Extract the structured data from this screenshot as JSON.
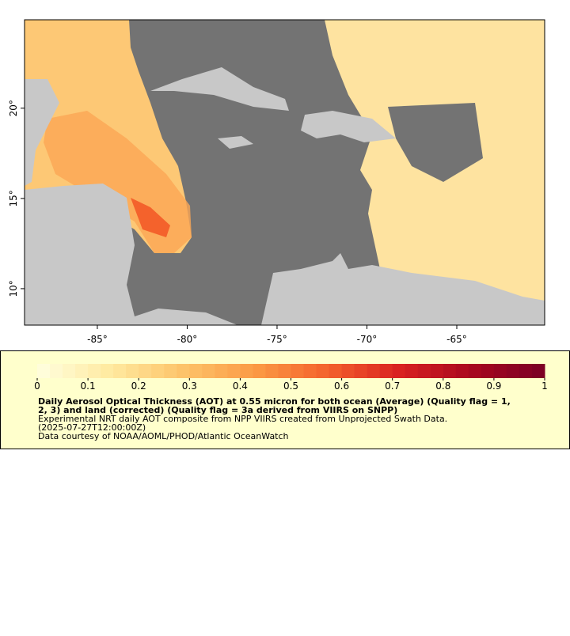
{
  "map": {
    "xlim": [
      -89.05,
      -60.11
    ],
    "ylim": [
      7.98,
      24.9
    ],
    "xticks": [
      {
        "value": -85,
        "label": "-85°"
      },
      {
        "value": -80,
        "label": "-80°"
      },
      {
        "value": -75,
        "label": "-75°"
      },
      {
        "value": -70,
        "label": "-70°"
      },
      {
        "value": -65,
        "label": "-65°"
      }
    ],
    "yticks": [
      {
        "value": 10,
        "label": "10°"
      },
      {
        "value": 15,
        "label": "15°"
      },
      {
        "value": 20,
        "label": "20°"
      }
    ]
  },
  "colorbar": {
    "range": [
      0,
      1
    ],
    "ticks": [
      0,
      0.1,
      0.2,
      0.3,
      0.4,
      0.5,
      0.6,
      0.7,
      0.8,
      0.9,
      1
    ],
    "colors": [
      "#ffffe0",
      "#ffeaa0",
      "#fdc46a",
      "#fb9a45",
      "#f4622c",
      "#d92120",
      "#a8081f",
      "#7a0026"
    ]
  },
  "caption": {
    "title_lines": [
      "Daily Aerosol Optical Thickness (AOT) at 0.55 micron for both ocean (Average) (Quality flag = 1,",
      "2, 3) and land (corrected) (Quality flag = 3a derived from VIIRS on SNPP)"
    ],
    "lines": [
      "Experimental NRT daily AOT composite from NPP VIIRS created from Unprojected Swath Data.",
      "(2025-07-27T12:00:00Z)",
      "Data courtesy of NOAA/AOML/PHOD/Atlantic OceanWatch"
    ]
  }
}
